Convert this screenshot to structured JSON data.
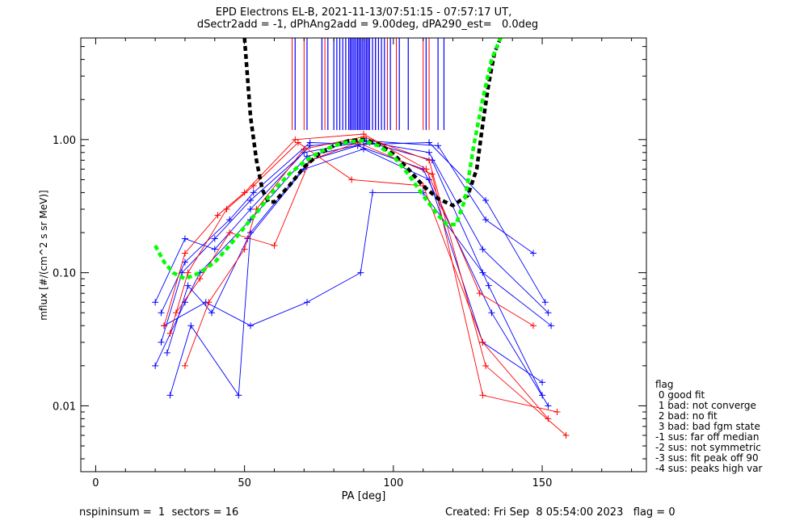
{
  "title": {
    "line1": "EPD Electrons EL-B, 2021-11-13/07:51:15 - 07:57:17 UT,",
    "line2": "dSectr2add = -1, dPhAng2add = 9.00deg, dPA290_est=   0.0deg"
  },
  "footer": {
    "left": "nspininsum =  1  sectors = 16",
    "right": "Created: Fri Sep  8 05:54:00 2023   flag = 0"
  },
  "flag_legend": {
    "title": "flag",
    "items": [
      " 0 good fit",
      " 1 bad: not converge",
      " 2 bad: no fit",
      " 3 bad: bad fgm state",
      "-1 sus: far off median",
      "-2 sus: not symmetric",
      "-3 sus: fit peak off 90",
      "-4 sus: peaks high var"
    ]
  },
  "colors": {
    "red_series": "#ff0000",
    "blue_series": "#0000ff",
    "black_fit": "#000000",
    "green_fit": "#00ff00"
  },
  "chart_data": {
    "type": "line",
    "xlabel": "PA [deg]",
    "ylabel": "mflux [#/(cm^2 s sr MeV)]",
    "xlim": [
      -5,
      185
    ],
    "ylim": [
      0.0032,
      5.8
    ],
    "yscale": "log",
    "xticks": [
      0,
      50,
      100,
      150
    ],
    "xtick_labels": [
      "0",
      "50",
      "100",
      "150"
    ],
    "yticks": [
      0.01,
      0.1,
      1.0
    ],
    "ytick_labels": [
      "0.01",
      "0.10",
      "1.00"
    ],
    "series": [
      {
        "color": "blue",
        "x": [
          22,
          29,
          40,
          52,
          70,
          90,
          112,
          130,
          152
        ],
        "y": [
          0.03,
          0.1,
          0.18,
          0.35,
          0.8,
          0.97,
          0.8,
          0.15,
          0.05
        ]
      },
      {
        "color": "blue",
        "x": [
          20,
          30,
          35,
          52,
          71,
          92,
          113,
          132,
          150
        ],
        "y": [
          0.02,
          0.06,
          0.1,
          0.25,
          0.75,
          0.95,
          0.7,
          0.08,
          0.012
        ]
      },
      {
        "color": "blue",
        "x": [
          25,
          32,
          48,
          52,
          72,
          88,
          110,
          133,
          152
        ],
        "y": [
          0.012,
          0.04,
          0.012,
          0.2,
          0.7,
          0.9,
          0.6,
          0.05,
          0.01
        ]
      },
      {
        "color": "blue",
        "x": [
          23,
          37,
          52,
          71,
          89,
          93,
          110,
          130,
          153
        ],
        "y": [
          0.04,
          0.06,
          0.04,
          0.06,
          0.1,
          0.4,
          0.4,
          0.1,
          0.04
        ]
      },
      {
        "color": "blue",
        "x": [
          20,
          30,
          40,
          52,
          72,
          91,
          115,
          131,
          147
        ],
        "y": [
          0.06,
          0.18,
          0.15,
          0.3,
          0.9,
          0.98,
          0.9,
          0.25,
          0.14
        ]
      },
      {
        "color": "blue",
        "x": [
          24,
          31,
          39,
          51,
          70,
          90,
          112,
          130,
          150
        ],
        "y": [
          0.025,
          0.08,
          0.05,
          0.18,
          0.6,
          0.85,
          0.5,
          0.03,
          0.015
        ]
      },
      {
        "color": "blue",
        "x": [
          22,
          30,
          45,
          53,
          72,
          90,
          112,
          131,
          151
        ],
        "y": [
          0.05,
          0.12,
          0.25,
          0.4,
          0.95,
          0.92,
          0.95,
          0.35,
          0.06
        ]
      },
      {
        "color": "red",
        "x": [
          23,
          30,
          41,
          50,
          67,
          90,
          111,
          129,
          147
        ],
        "y": [
          0.04,
          0.14,
          0.27,
          0.4,
          1.0,
          1.1,
          0.6,
          0.07,
          0.04
        ]
      },
      {
        "color": "red",
        "x": [
          25,
          31,
          44,
          53,
          68,
          86,
          110,
          130,
          152
        ],
        "y": [
          0.035,
          0.1,
          0.3,
          0.45,
          0.95,
          0.5,
          0.45,
          0.03,
          0.008
        ]
      },
      {
        "color": "red",
        "x": [
          30,
          38,
          50,
          54,
          70,
          90,
          112,
          131,
          158
        ],
        "y": [
          0.02,
          0.06,
          0.15,
          0.3,
          0.85,
          1.05,
          0.7,
          0.02,
          0.006
        ]
      },
      {
        "color": "red",
        "x": [
          27,
          35,
          45,
          60,
          72,
          88,
          113,
          130,
          155
        ],
        "y": [
          0.05,
          0.09,
          0.2,
          0.16,
          0.7,
          0.95,
          0.55,
          0.012,
          0.009
        ]
      }
    ],
    "fits": [
      {
        "name": "",
        "color": "black",
        "x": [
          50,
          52,
          54,
          56,
          58,
          60,
          65,
          70,
          75,
          80,
          85,
          90,
          95,
          100,
          105,
          110,
          115,
          120,
          125,
          128,
          130,
          132,
          134,
          136
        ],
        "y": [
          5.8,
          1.5,
          0.7,
          0.42,
          0.34,
          0.34,
          0.45,
          0.62,
          0.78,
          0.9,
          0.98,
          1.0,
          0.92,
          0.78,
          0.6,
          0.45,
          0.36,
          0.32,
          0.38,
          0.6,
          1.3,
          2.6,
          4.5,
          5.8
        ]
      },
      {
        "name": "",
        "color": "green",
        "x": [
          20,
          23,
          26,
          30,
          35,
          40,
          45,
          50,
          55,
          60,
          65,
          70,
          75,
          80,
          85,
          90,
          95,
          100,
          105,
          110,
          115,
          118,
          121,
          124,
          127,
          130,
          133,
          136
        ],
        "y": [
          0.16,
          0.12,
          0.1,
          0.09,
          0.1,
          0.12,
          0.16,
          0.22,
          0.3,
          0.42,
          0.55,
          0.68,
          0.8,
          0.9,
          0.96,
          0.98,
          0.9,
          0.75,
          0.55,
          0.38,
          0.27,
          0.23,
          0.23,
          0.35,
          0.9,
          2.0,
          4.0,
          5.8
        ]
      }
    ],
    "vertical_lines": {
      "y_bottom": 1.18,
      "red_x": [
        66,
        70,
        77,
        82,
        84,
        86,
        87,
        88,
        89,
        90,
        91,
        92,
        94,
        98,
        101,
        110,
        112
      ],
      "blue_x": [
        67,
        71,
        76,
        78,
        80,
        81,
        82,
        83,
        84,
        85,
        85.5,
        86,
        86.5,
        87,
        87.5,
        88,
        88.5,
        89,
        89.5,
        90,
        90.5,
        91,
        91.5,
        92,
        93,
        94,
        95,
        96,
        97,
        99,
        102,
        105,
        111,
        115,
        117
      ]
    }
  }
}
